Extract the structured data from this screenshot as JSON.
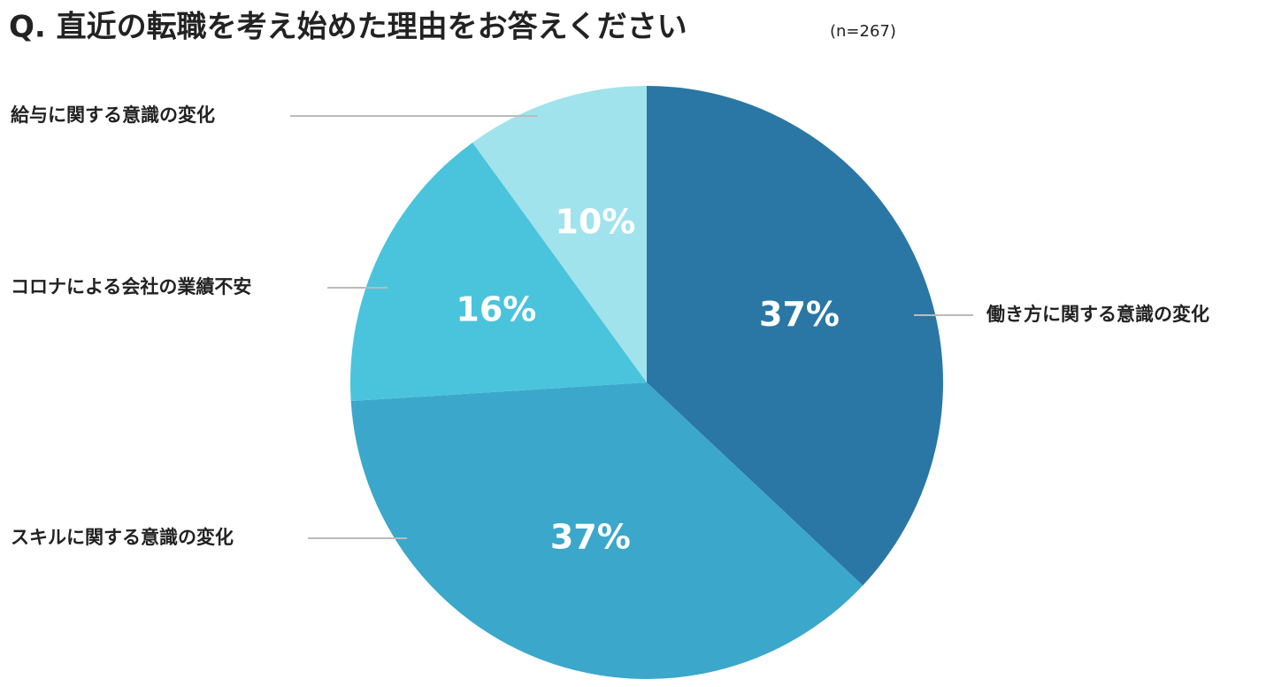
{
  "chart_data": {
    "type": "pie",
    "title": "Q. 直近の転職を考え始めた理由をお答えください",
    "subtitle": "(n=267)",
    "categories": [
      "働き方に関する意識の変化",
      "スキルに関する意識の変化",
      "コロナによる会社の業績不安",
      "給与に関する意識の変化"
    ],
    "values": [
      37,
      37,
      16,
      10
    ],
    "value_labels": [
      "37%",
      "37%",
      "16%",
      "10%"
    ],
    "colors": [
      "#2a77a5",
      "#3ba7cb",
      "#49c4dc",
      "#a0e3ec"
    ]
  }
}
